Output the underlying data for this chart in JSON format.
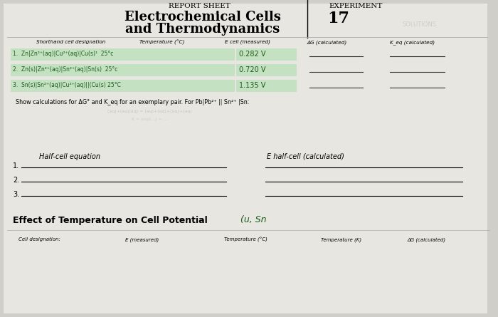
{
  "bg_color": "#d0cec8",
  "paper_color": "#e8e6e0",
  "title_left": "REPORT SHEET",
  "title_right": "EXPERIMENT",
  "experiment_num": "17",
  "header_cols": [
    "Shorthand cell designation",
    "Temperature (°C)",
    "E cell (measured)",
    "ΔG (calculated)",
    "K_eq (calculated)"
  ],
  "row1_cell": "1.  Zn|Zn²⁺(aq)|Cu²⁺(aq)|Cu(s)¹  25°c",
  "row1_ecell": "0.282 V",
  "row2_cell": "2.  Zn(s)|Zn²⁺(aq)|Sn²⁺(aq)|Sn(s)  25°c",
  "row2_ecell": "0.720 V",
  "row3_cell": "3.  Sn(s)|Sn²⁺(aq)|Cu²⁺(aq)||(Cu(s) 25°C",
  "row3_ecell": "1.135 V",
  "show_calc_text": "Show calculations for ΔG° and K_eq for an exemplary pair. For Pb|Pb²⁺ || Sn²⁺ |Sn:",
  "half_cell_header_left": "Half-cell equation",
  "half_cell_header_right": "E half-cell (calculated)",
  "effect_title": "Effect of Temperature on Cell Potential",
  "effect_handwritten": "(u, Sn",
  "bottom_cols": [
    "Cell designation:",
    "E (measured)",
    "Temperature (°C)",
    "Temperature (K)",
    "ΔG (calculated)"
  ],
  "highlight_color": "#b8e0b8",
  "handwrite_color": "#1a5c1a",
  "line_color": "#333333",
  "faint_color": "#aaaaaa"
}
